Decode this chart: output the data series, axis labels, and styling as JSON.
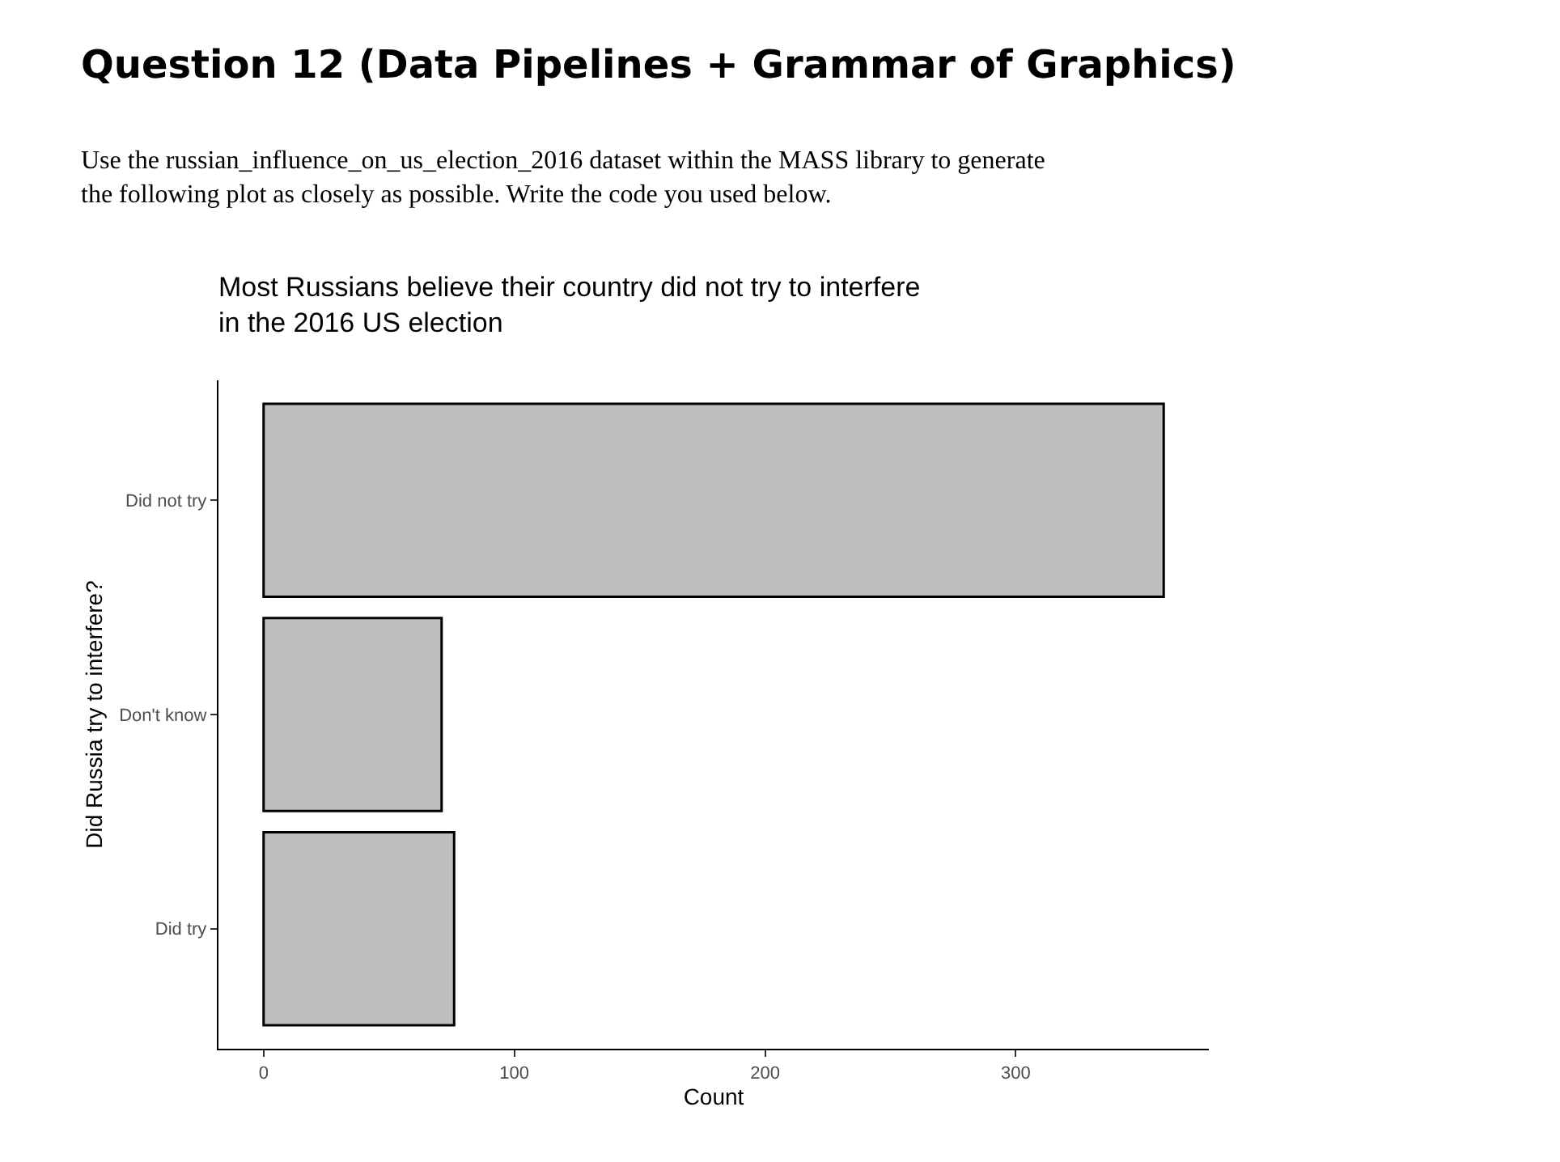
{
  "chart_data": {
    "type": "bar",
    "orientation": "horizontal",
    "title": "Most Russians believe their country did not try to interfere\nin the 2016 US election",
    "xlabel": "Count",
    "ylabel": "Did Russia try to interfere?",
    "categories": [
      "Did not try",
      "Don't know",
      "Did try"
    ],
    "values": [
      359,
      71,
      76
    ],
    "color": "#bebebe",
    "xlim": [
      -18,
      377
    ],
    "xticks": [
      0,
      100,
      200,
      300
    ],
    "grid": false,
    "legend": false,
    "annotations": [
      "Question 12 (Data Pipelines + Grammar of Graphics)",
      "Use the russian_influence_on_us_election_2016 dataset within the MASS library to generate\nthe following plot as closely as possible. Write the code you used below."
    ]
  }
}
